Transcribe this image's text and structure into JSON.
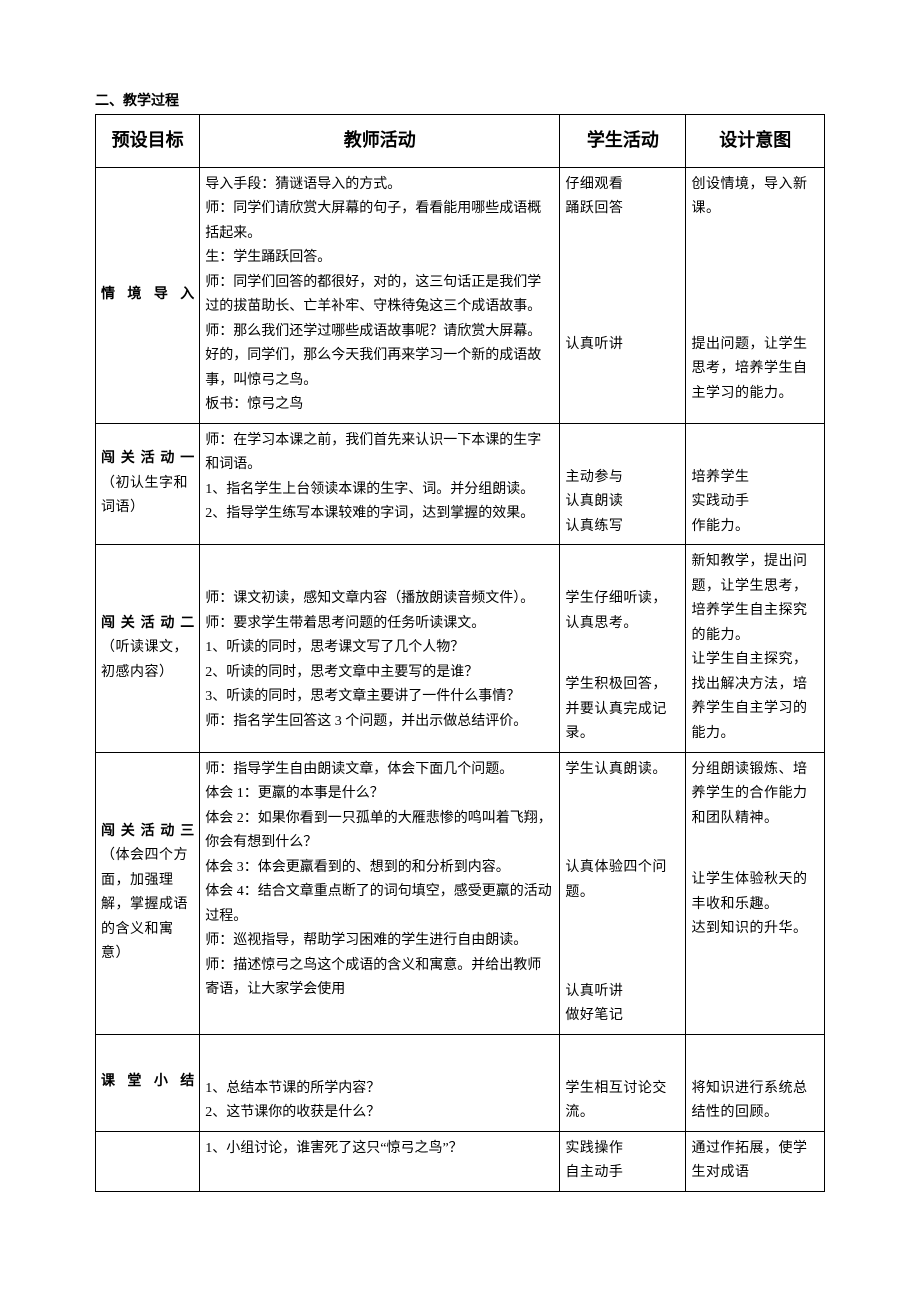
{
  "section_title": "二、教学过程",
  "header": {
    "c1": "预设目标",
    "c2": "教师活动",
    "c3": "学生活动",
    "c4": "设计意图"
  },
  "rows": [
    {
      "c1_bold": "情境导入",
      "c2": "导入手段：猜谜语导入的方式。\n师：同学们请欣赏大屏幕的句子，看看能用哪些成语概括起来。\n生：学生踊跃回答。\n师：同学们回答的都很好，对的，这三句话正是我们学过的拔苗助长、亡羊补牢、守株待兔这三个成语故事。\n师：那么我们还学过哪些成语故事呢？请欣赏大屏幕。好的，同学们，那么今天我们再来学习一个新的成语故事，叫惊弓之鸟。\n板书：惊弓之鸟",
      "c3": "仔细观看\n踊跃回答\n\n\n\n认真听讲",
      "c4": "创设情境，导入新课。\n\n\n\n提出问题，让学生思考，培养学生自主学习的能力。"
    },
    {
      "c1_bold": "闯关活动一",
      "c1_sub": "（初认生字和词语）",
      "c2": "师：在学习本课之前，我们首先来认识一下本课的生字和词语。\n1、指名学生上台领读本课的生字、词。并分组朗读。\n2、指导学生练写本课较难的字词，达到掌握的效果。",
      "c3": "\n主动参与\n认真朗读\n认真练写",
      "c4": "\n培养学生\n实践动手\n作能力。"
    },
    {
      "c1_bold": "闯关活动二",
      "c1_sub": "（听读课文，初感内容）",
      "c2": "\n师：课文初读，感知文章内容（播放朗读音频文件）。\n师：要求学生带着思考问题的任务听读课文。\n1、听读的同时，思考课文写了几个人物？\n2、听读的同时，思考文章中主要写的是谁？\n3、听读的同时，思考文章主要讲了一件什么事情？\n师：指名学生回答这 3 个问题，并出示做总结评价。",
      "c3": "\n学生仔细听读，认真思考。\n\n学生积极回答，并要认真完成记录。",
      "c4": "新知教学，提出问题，让学生思考，培养学生自主探究的能力。\n让学生自主探究，找出解决方法，培养学生自主学习的能力。"
    },
    {
      "c1_bold": "闯关活动三",
      "c1_sub": "（体会四个方面，加强理解，掌握成语的含义和寓意）",
      "c2": "师：指导学生自由朗读文章，体会下面几个问题。\n体会 1：更羸的本事是什么？\n体会 2：如果你看到一只孤单的大雁悲惨的鸣叫着飞翔，你会有想到什么？\n体会 3：体会更羸看到的、想到的和分析到内容。\n体会 4：结合文章重点断了的词句填空，感受更羸的活动过程。\n师：巡视指导，帮助学习困难的学生进行自由朗读。\n师：描述惊弓之鸟这个成语的含义和寓意。并给出教师寄语，让大家学会使用",
      "c3": "学生认真朗读。\n\n\n认真体验四个问题。\n\n\n认真听讲\n做好笔记",
      "c4": "分组朗读锻炼、培养学生的合作能力和团队精神。\n\n让学生体验秋天的丰收和乐趣。\n达到知识的升华。"
    },
    {
      "c1_bold": "课堂小结",
      "c2": "\n1、总结本节课的所学内容？\n2、这节课你的收获是什么？",
      "c3": "\n学生相互讨论交流。",
      "c4": "\n将知识进行系统总结性的回顾。"
    },
    {
      "c1_bold": "",
      "c2": "1、小组讨论，谁害死了这只“惊弓之鸟”？",
      "c3": "实践操作\n自主动手",
      "c4": "通过作拓展，使学生对成语"
    }
  ]
}
